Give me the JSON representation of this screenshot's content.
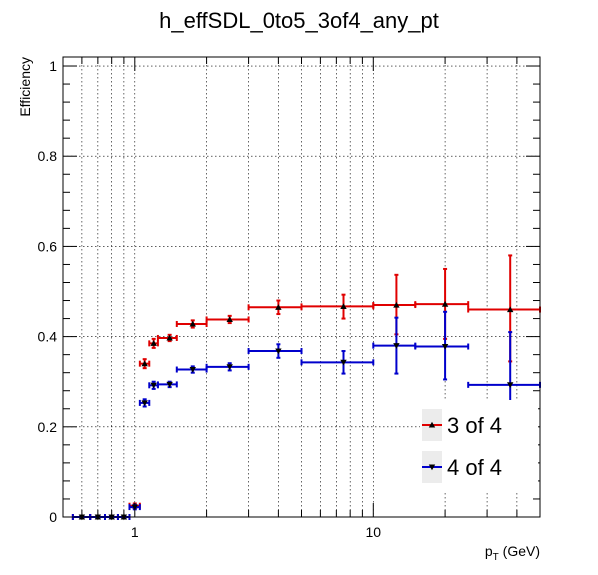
{
  "chart_data": {
    "type": "scatter",
    "title": "h_effSDL_0to5_3of4_any_pt",
    "xlabel_main": "p",
    "xlabel_sub": "T",
    "xlabel_unit": " (GeV)",
    "ylabel": "Efficiency",
    "xscale": "log",
    "xlim": [
      0.5,
      50
    ],
    "ylim": [
      0,
      1.02
    ],
    "grid": true,
    "legend_position": "bottom-right",
    "x_ticks": [
      {
        "value": 1,
        "label": "1"
      },
      {
        "value": 10,
        "label": "10"
      }
    ],
    "y_ticks": [
      {
        "value": 0,
        "label": "0"
      },
      {
        "value": 0.2,
        "label": "0.2"
      },
      {
        "value": 0.4,
        "label": "0.4"
      },
      {
        "value": 0.6,
        "label": "0.6"
      },
      {
        "value": 0.8,
        "label": "0.8"
      },
      {
        "value": 1,
        "label": "1"
      }
    ],
    "series": [
      {
        "name": "3 of 4",
        "color": "#e00000",
        "marker": "triangle-up",
        "points": [
          {
            "x": 0.6,
            "xlo": 0.55,
            "xhi": 0.65,
            "y": 0.0,
            "ylo": 0.0,
            "yhi": 0.002
          },
          {
            "x": 0.7,
            "xlo": 0.65,
            "xhi": 0.75,
            "y": 0.0,
            "ylo": 0.0,
            "yhi": 0.002
          },
          {
            "x": 0.8,
            "xlo": 0.75,
            "xhi": 0.85,
            "y": 0.0,
            "ylo": 0.0,
            "yhi": 0.002
          },
          {
            "x": 0.9,
            "xlo": 0.85,
            "xhi": 0.95,
            "y": 0.0,
            "ylo": 0.0,
            "yhi": 0.002
          },
          {
            "x": 1.0,
            "xlo": 0.95,
            "xhi": 1.05,
            "y": 0.025,
            "ylo": 0.02,
            "yhi": 0.03
          },
          {
            "x": 1.1,
            "xlo": 1.05,
            "xhi": 1.15,
            "y": 0.34,
            "ylo": 0.33,
            "yhi": 0.35
          },
          {
            "x": 1.2,
            "xlo": 1.15,
            "xhi": 1.25,
            "y": 0.385,
            "ylo": 0.375,
            "yhi": 0.395
          },
          {
            "x": 1.4,
            "xlo": 1.25,
            "xhi": 1.5,
            "y": 0.397,
            "ylo": 0.39,
            "yhi": 0.404
          },
          {
            "x": 1.75,
            "xlo": 1.5,
            "xhi": 2.0,
            "y": 0.428,
            "ylo": 0.42,
            "yhi": 0.436
          },
          {
            "x": 2.5,
            "xlo": 2.0,
            "xhi": 3.0,
            "y": 0.438,
            "ylo": 0.43,
            "yhi": 0.446
          },
          {
            "x": 4.0,
            "xlo": 3.0,
            "xhi": 5.0,
            "y": 0.465,
            "ylo": 0.45,
            "yhi": 0.48
          },
          {
            "x": 7.5,
            "xlo": 5.0,
            "xhi": 10.0,
            "y": 0.467,
            "ylo": 0.44,
            "yhi": 0.493
          },
          {
            "x": 12.5,
            "xlo": 10.0,
            "xhi": 15.0,
            "y": 0.47,
            "ylo": 0.405,
            "yhi": 0.537
          },
          {
            "x": 20.0,
            "xlo": 15.0,
            "xhi": 25.0,
            "y": 0.472,
            "ylo": 0.395,
            "yhi": 0.55
          },
          {
            "x": 37.5,
            "xlo": 25.0,
            "xhi": 50.0,
            "y": 0.46,
            "ylo": 0.345,
            "yhi": 0.58
          }
        ]
      },
      {
        "name": "4 of 4",
        "color": "#0000cc",
        "marker": "triangle-down",
        "points": [
          {
            "x": 0.6,
            "xlo": 0.55,
            "xhi": 0.65,
            "y": 0.0,
            "ylo": 0.0,
            "yhi": 0.002
          },
          {
            "x": 0.7,
            "xlo": 0.65,
            "xhi": 0.75,
            "y": 0.0,
            "ylo": 0.0,
            "yhi": 0.002
          },
          {
            "x": 0.8,
            "xlo": 0.75,
            "xhi": 0.85,
            "y": 0.0,
            "ylo": 0.0,
            "yhi": 0.002
          },
          {
            "x": 0.9,
            "xlo": 0.85,
            "xhi": 0.95,
            "y": 0.0,
            "ylo": 0.0,
            "yhi": 0.002
          },
          {
            "x": 1.0,
            "xlo": 0.95,
            "xhi": 1.05,
            "y": 0.022,
            "ylo": 0.017,
            "yhi": 0.027
          },
          {
            "x": 1.1,
            "xlo": 1.05,
            "xhi": 1.15,
            "y": 0.253,
            "ylo": 0.245,
            "yhi": 0.261
          },
          {
            "x": 1.2,
            "xlo": 1.15,
            "xhi": 1.25,
            "y": 0.292,
            "ylo": 0.284,
            "yhi": 0.3
          },
          {
            "x": 1.4,
            "xlo": 1.25,
            "xhi": 1.5,
            "y": 0.294,
            "ylo": 0.288,
            "yhi": 0.3
          },
          {
            "x": 1.75,
            "xlo": 1.5,
            "xhi": 2.0,
            "y": 0.327,
            "ylo": 0.32,
            "yhi": 0.334
          },
          {
            "x": 2.5,
            "xlo": 2.0,
            "xhi": 3.0,
            "y": 0.333,
            "ylo": 0.325,
            "yhi": 0.341
          },
          {
            "x": 4.0,
            "xlo": 3.0,
            "xhi": 5.0,
            "y": 0.368,
            "ylo": 0.353,
            "yhi": 0.383
          },
          {
            "x": 7.5,
            "xlo": 5.0,
            "xhi": 10.0,
            "y": 0.343,
            "ylo": 0.318,
            "yhi": 0.368
          },
          {
            "x": 12.5,
            "xlo": 10.0,
            "xhi": 15.0,
            "y": 0.38,
            "ylo": 0.318,
            "yhi": 0.442
          },
          {
            "x": 20.0,
            "xlo": 15.0,
            "xhi": 25.0,
            "y": 0.378,
            "ylo": 0.305,
            "yhi": 0.455
          },
          {
            "x": 37.5,
            "xlo": 25.0,
            "xhi": 50.0,
            "y": 0.293,
            "ylo": 0.175,
            "yhi": 0.41
          }
        ]
      }
    ]
  }
}
